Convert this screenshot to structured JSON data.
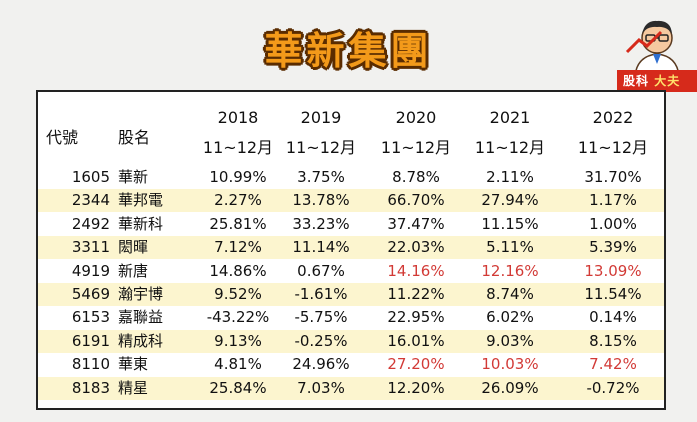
{
  "title": "華新集團",
  "brand": {
    "tag_left": "股科",
    "tag_right": "大夫"
  },
  "table": {
    "header_code": "代號",
    "header_name": "股名",
    "years": [
      "2018",
      "2019",
      "2020",
      "2021",
      "2022"
    ],
    "period": "11~12月",
    "rows": [
      {
        "code": "1605",
        "name": "華新",
        "values": [
          "10.99%",
          "3.75%",
          "8.78%",
          "2.11%",
          "31.70%"
        ],
        "red": [
          false,
          false,
          false,
          false,
          false
        ]
      },
      {
        "code": "2344",
        "name": "華邦電",
        "values": [
          "2.27%",
          "13.78%",
          "66.70%",
          "27.94%",
          "1.17%"
        ],
        "red": [
          false,
          false,
          false,
          false,
          false
        ]
      },
      {
        "code": "2492",
        "name": "華新科",
        "values": [
          "25.81%",
          "33.23%",
          "37.47%",
          "11.15%",
          "1.00%"
        ],
        "red": [
          false,
          false,
          false,
          false,
          false
        ]
      },
      {
        "code": "3311",
        "name": "閎暉",
        "values": [
          "7.12%",
          "11.14%",
          "22.03%",
          "5.11%",
          "5.39%"
        ],
        "red": [
          false,
          false,
          false,
          false,
          false
        ]
      },
      {
        "code": "4919",
        "name": "新唐",
        "values": [
          "14.86%",
          "0.67%",
          "14.16%",
          "12.16%",
          "13.09%"
        ],
        "red": [
          false,
          false,
          true,
          true,
          true
        ]
      },
      {
        "code": "5469",
        "name": "瀚宇博",
        "values": [
          "9.52%",
          "-1.61%",
          "11.22%",
          "8.74%",
          "11.54%"
        ],
        "red": [
          false,
          false,
          false,
          false,
          false
        ]
      },
      {
        "code": "6153",
        "name": "嘉聯益",
        "values": [
          "-43.22%",
          "-5.75%",
          "22.95%",
          "6.02%",
          "0.14%"
        ],
        "red": [
          false,
          false,
          false,
          false,
          false
        ]
      },
      {
        "code": "6191",
        "name": "精成科",
        "values": [
          "9.13%",
          "-0.25%",
          "16.01%",
          "9.03%",
          "8.15%"
        ],
        "red": [
          false,
          false,
          false,
          false,
          false
        ]
      },
      {
        "code": "8110",
        "name": "華東",
        "values": [
          "4.81%",
          "24.96%",
          "27.20%",
          "10.03%",
          "7.42%"
        ],
        "red": [
          false,
          false,
          true,
          true,
          true
        ]
      },
      {
        "code": "8183",
        "name": "精星",
        "values": [
          "25.84%",
          "7.03%",
          "12.20%",
          "26.09%",
          "-0.72%"
        ],
        "red": [
          false,
          false,
          false,
          false,
          false
        ]
      }
    ]
  },
  "colors": {
    "highlight_text": "#d23a36",
    "alt_row": "#fcf5cf",
    "title": "#f39a1a"
  }
}
